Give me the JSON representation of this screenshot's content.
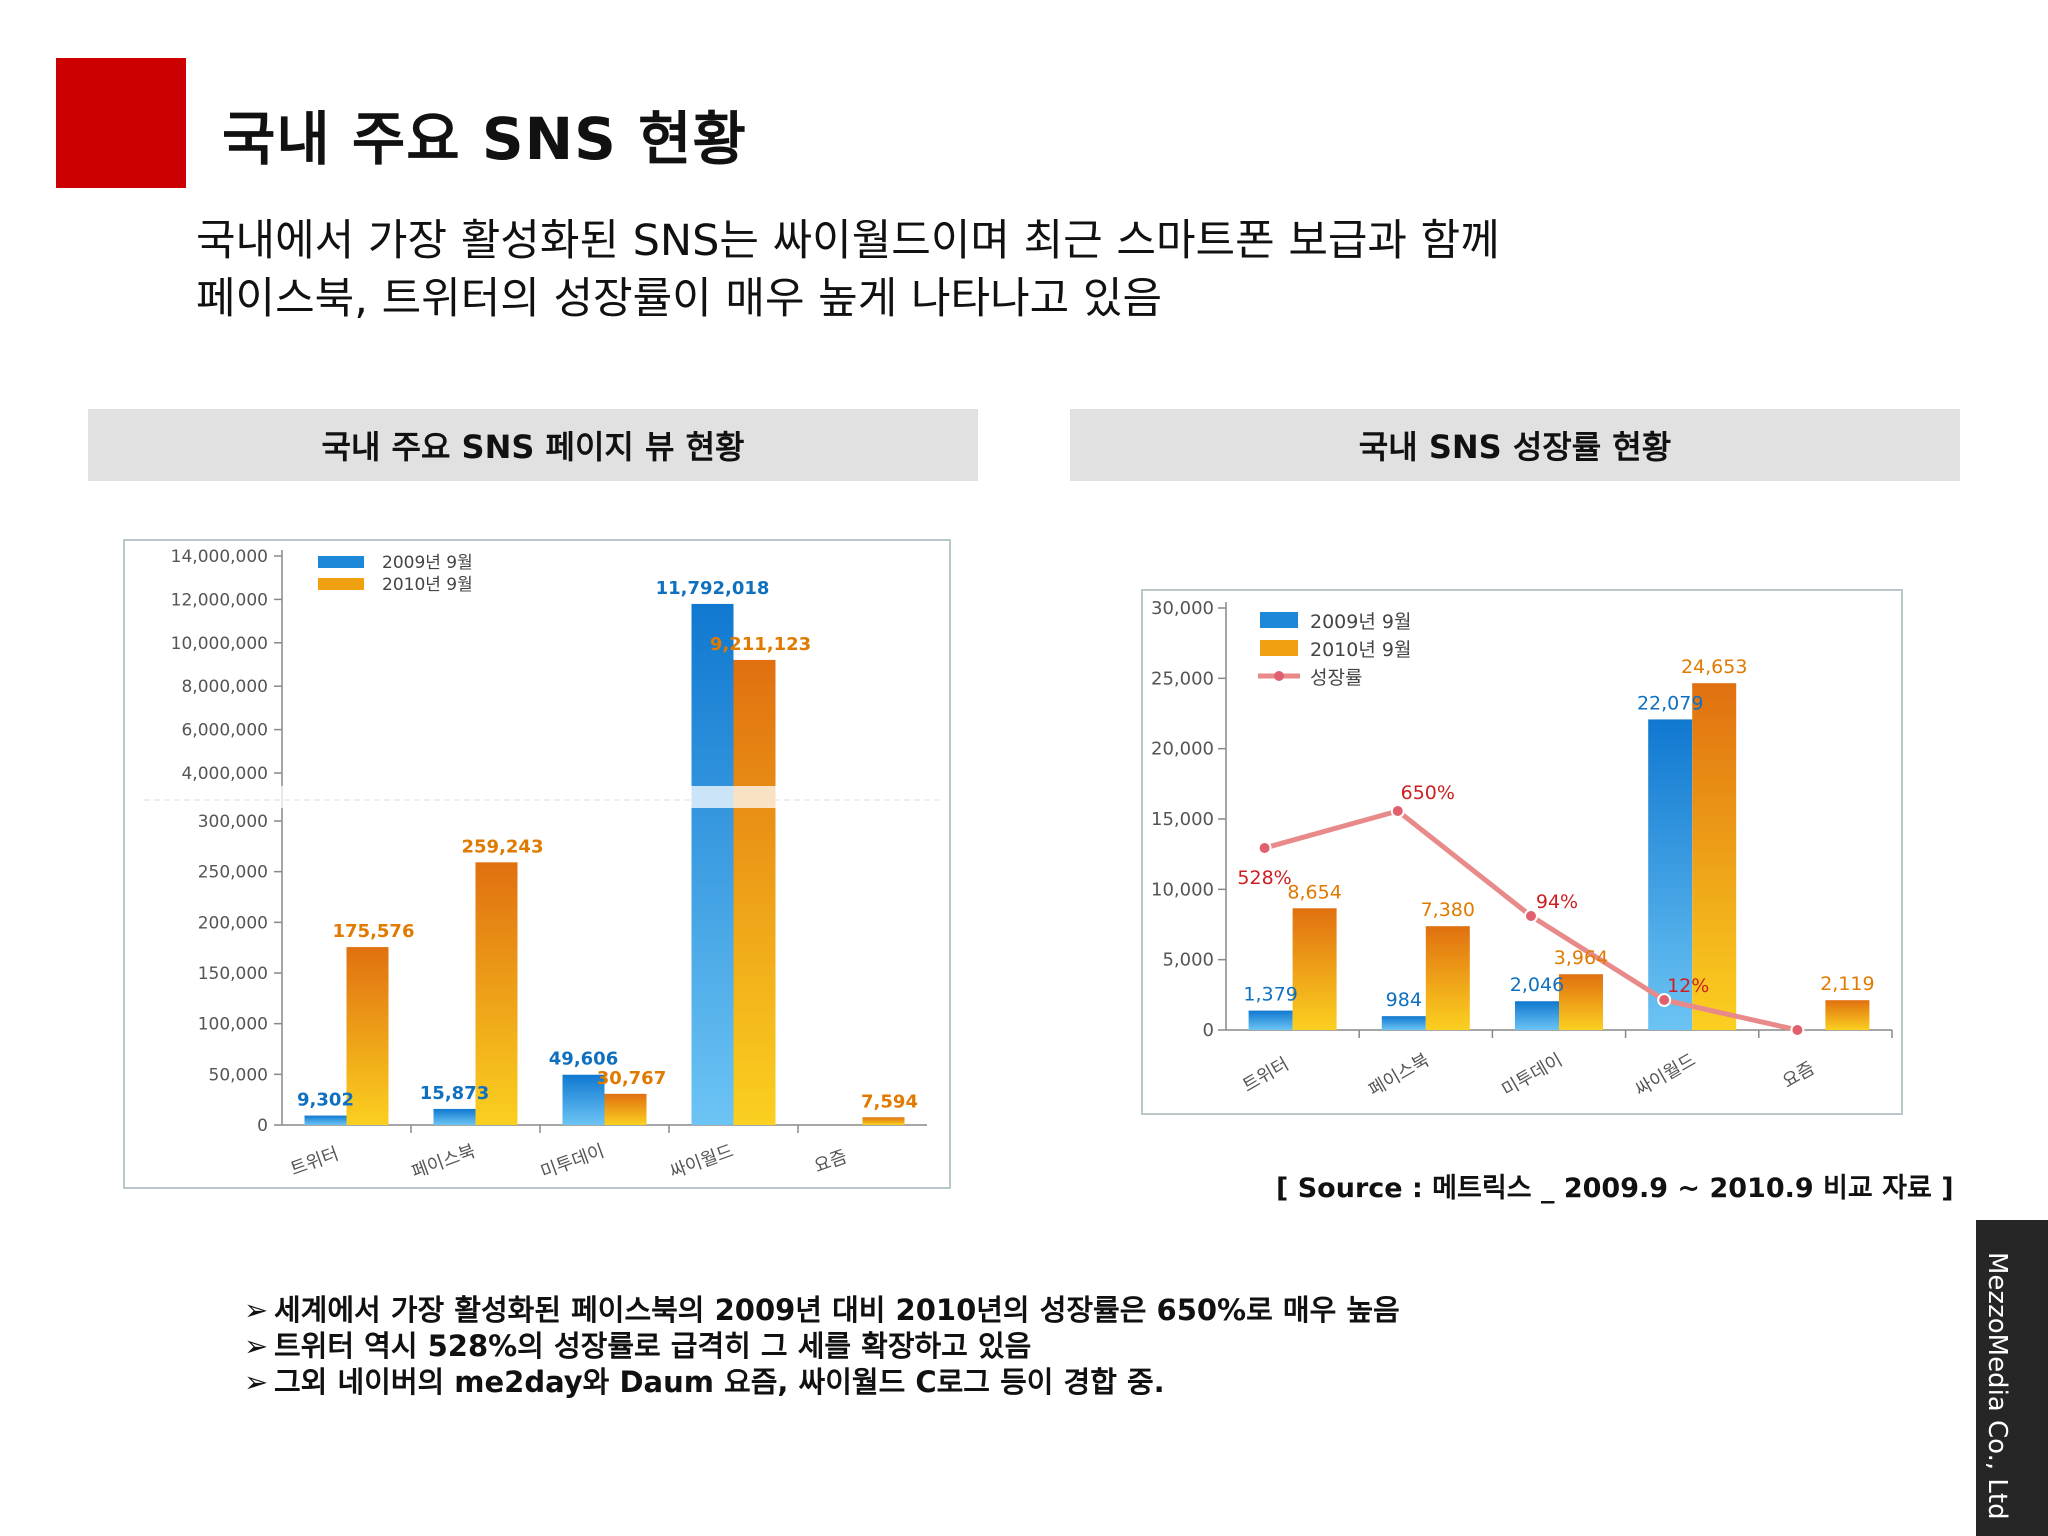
{
  "page": {
    "title": "국내 주요 SNS 현황",
    "intro": [
      "국내에서 가장 활성화된 SNS는 싸이월드이며 최근 스마트폰 보급과 함께",
      "페이스북, 트위터의 성장률이 매우 높게 나타나고 있음"
    ],
    "left_panel_title": "국내 주요 SNS 페이지 뷰 현황",
    "right_panel_title": "국내 SNS 성장률 현황",
    "source": "[ Source : 메트릭스 _ 2009.9 ~ 2010.9 비교 자료 ]",
    "bullet_marker": "➢",
    "bullets": [
      "세계에서 가장 활성화된 페이스북의 2009년 대비 2010년의 성장률은 650%로 매우 높음",
      "트위터 역시 528%의 성장률로 급격히 그 세를 확장하고 있음",
      "그외 네이버의 me2day와 Daum 요즘, 싸이월드 C로그 등이 경합 중."
    ],
    "brand": "MezzoMedia Co., Ltd",
    "colors": {
      "accent_red": "#cc0000",
      "series_2009": "#1e88d8",
      "series_2010": "#f0a010",
      "growth_line": "#e87878"
    }
  },
  "chart_data": [
    {
      "type": "bar",
      "categories": [
        "트위터",
        "페이스북",
        "미투데이",
        "싸이월드",
        "요즘"
      ],
      "series": [
        {
          "name": "2009년 9월",
          "values": [
            9302,
            15873,
            49606,
            11792018,
            null
          ],
          "labels": [
            "9,302",
            "15,873",
            "49,606",
            "11,792,018",
            ""
          ]
        },
        {
          "name": "2010년 9월",
          "values": [
            175576,
            259243,
            30767,
            9211123,
            7594
          ],
          "labels": [
            "175,576",
            "259,243",
            "30,767",
            "9,211,123",
            "7,594"
          ]
        }
      ],
      "axis": "broken",
      "upper_ticks": [
        "14,000,000",
        "12,000,000",
        "10,000,000",
        "8,000,000",
        "6,000,000",
        "4,000,000"
      ],
      "lower_ticks": [
        "300,000",
        "250,000",
        "200,000",
        "150,000",
        "100,000",
        "50,000",
        "0"
      ],
      "upper_ylim": [
        4000000,
        14000000
      ],
      "lower_ylim": [
        0,
        300000
      ],
      "legend": "top-left"
    },
    {
      "type": "bar",
      "categories": [
        "트위터",
        "페이스북",
        "미투데이",
        "싸이월드",
        "요즘"
      ],
      "series": [
        {
          "name": "2009년 9월",
          "values": [
            1379,
            984,
            2046,
            22079,
            null
          ],
          "labels": [
            "1,379",
            "984",
            "2,046",
            "22,079",
            ""
          ]
        },
        {
          "name": "2010년 9월",
          "values": [
            8654,
            7380,
            3964,
            24653,
            2119
          ],
          "labels": [
            "8,654",
            "7,380",
            "3,964",
            "24,653",
            "2,119"
          ]
        },
        {
          "name": "성장률",
          "type": "line",
          "labels": [
            "528%",
            "650%",
            "94%",
            "12%",
            ""
          ]
        }
      ],
      "ticks": [
        "30,000",
        "25,000",
        "20,000",
        "15,000",
        "10,000",
        "5,000",
        "0"
      ],
      "ylim": [
        0,
        30000
      ],
      "legend": "top-left"
    }
  ]
}
